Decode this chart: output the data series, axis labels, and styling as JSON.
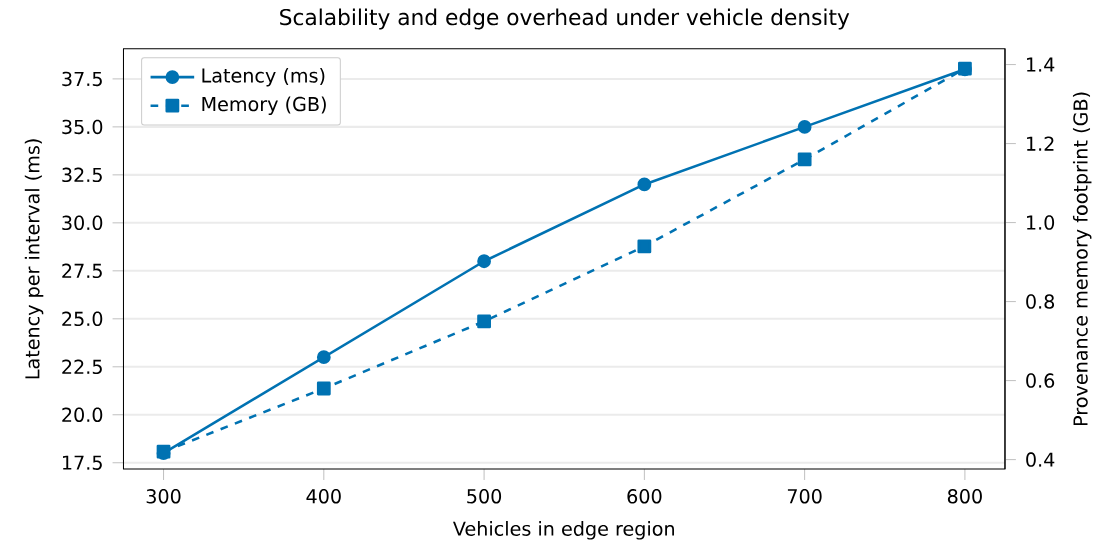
{
  "chart_data": {
    "type": "line",
    "title": "Scalability and edge overhead under vehicle density",
    "xlabel": "Vehicles in edge region",
    "ylabel": "Latency per interval (ms)",
    "y2label": "Provenance memory footprint (GB)",
    "x": [
      300,
      400,
      500,
      600,
      700,
      800
    ],
    "series": [
      {
        "name": "Latency (ms)",
        "color": "#0072b2",
        "values": [
          18,
          23,
          28,
          32,
          35,
          38
        ],
        "marker": "circle",
        "line_style": "solid"
      },
      {
        "name": "Memory (GB)",
        "color": "#0072b2",
        "values": [
          0.42,
          0.58,
          0.75,
          0.94,
          1.16,
          1.39
        ],
        "marker": "square",
        "line_style": "dashed",
        "axis": "y2"
      }
    ],
    "xlim": [
      275,
      825
    ],
    "xticks": [
      300,
      400,
      500,
      600,
      700,
      800
    ],
    "ylim": [
      17.17,
      39.07
    ],
    "yticks": [
      17.5,
      {
        "value": 20,
        "label": "20.0"
      },
      22.5,
      {
        "value": 25,
        "label": "25.0"
      },
      27.5,
      {
        "value": 30,
        "label": "30.0"
      },
      32.5,
      {
        "value": 35,
        "label": "35.0"
      },
      37.5
    ],
    "y2lim": [
      0.376,
      1.44
    ],
    "y2ticks": [
      0.4,
      0.6,
      0.8,
      {
        "value": 1,
        "label": "1.0"
      },
      1.2,
      1.4
    ],
    "grid": "y",
    "legend": "top left"
  }
}
